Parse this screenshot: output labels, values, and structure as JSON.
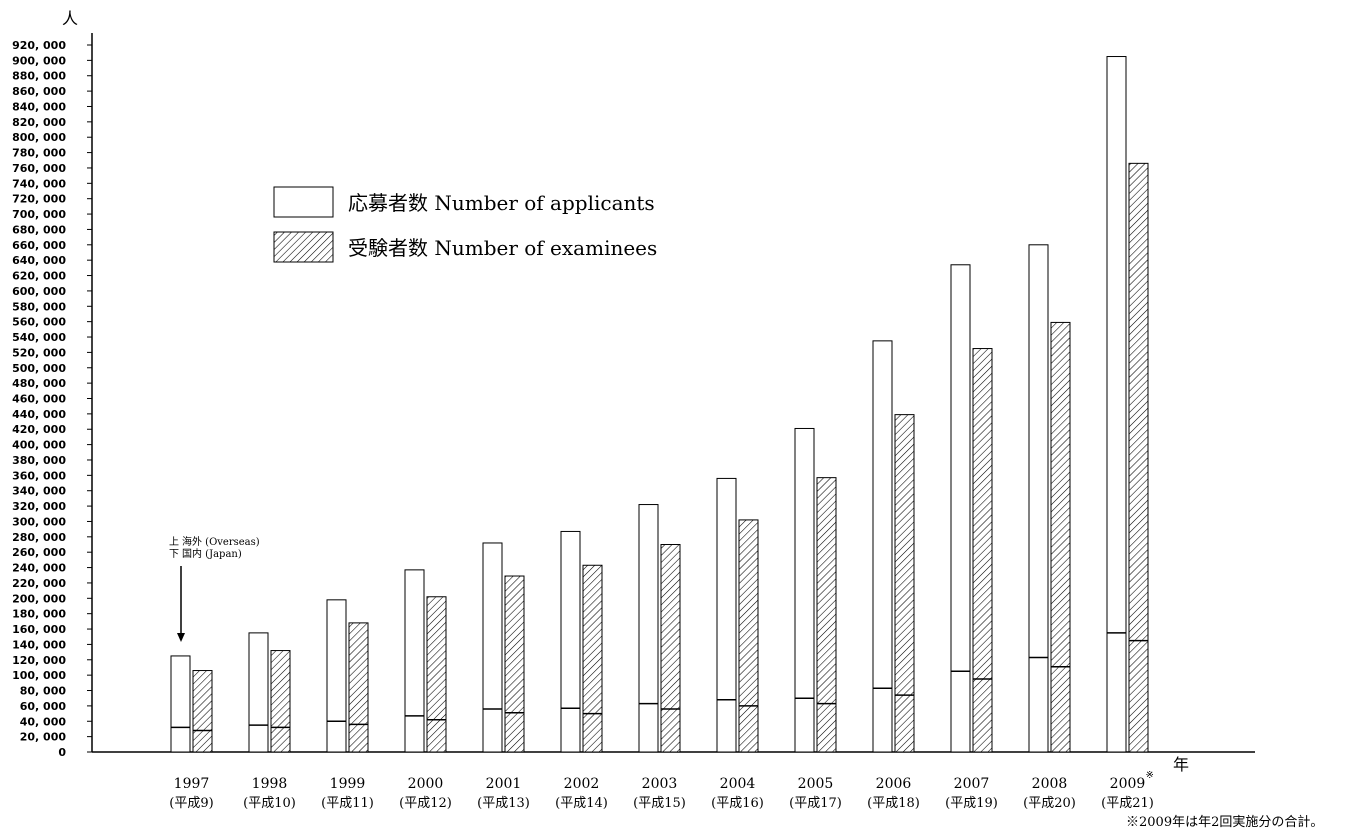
{
  "chart_data": {
    "type": "bar",
    "title": "",
    "y_unit": "人",
    "x_unit": "年",
    "ylim": [
      0,
      920000
    ],
    "y_step": 20000,
    "y_tick_labels": [
      "0",
      "20, 000",
      "40, 000",
      "60, 000",
      "80, 000",
      "100, 000",
      "120, 000",
      "140, 000",
      "160, 000",
      "180, 000",
      "200, 000",
      "220, 000",
      "240, 000",
      "260, 000",
      "280, 000",
      "300, 000",
      "320, 000",
      "340, 000",
      "360, 000",
      "380, 000",
      "400, 000",
      "420, 000",
      "440, 000",
      "460, 000",
      "480, 000",
      "500, 000",
      "520, 000",
      "540, 000",
      "560, 000",
      "580, 000",
      "600, 000",
      "620, 000",
      "640, 000",
      "660, 000",
      "680, 000",
      "700, 000",
      "720, 000",
      "740, 000",
      "760, 000",
      "780, 000",
      "800, 000",
      "820, 000",
      "840, 000",
      "860, 000",
      "880, 000",
      "900, 000",
      "920, 000"
    ],
    "categories": [
      "1997",
      "1998",
      "1999",
      "2000",
      "2001",
      "2002",
      "2003",
      "2004",
      "2005",
      "2006",
      "2007",
      "2008",
      "2009"
    ],
    "era_labels": [
      "(平成9)",
      "(平成10)",
      "(平成11)",
      "(平成12)",
      "(平成13)",
      "(平成14)",
      "(平成15)",
      "(平成16)",
      "(平成17)",
      "(平成18)",
      "(平成19)",
      "(平成20)",
      "(平成21)"
    ],
    "year_marks": [
      "",
      "",
      "",
      "",
      "",
      "",
      "",
      "",
      "",
      "",
      "",
      "",
      "※"
    ],
    "legend_position": "upper-left",
    "series": [
      {
        "name": "応募者数 Number of applicants",
        "pattern": "plain",
        "values": [
          125000,
          155000,
          198000,
          237000,
          272000,
          287000,
          322000,
          356000,
          421000,
          535000,
          634000,
          660000,
          905000
        ],
        "domestic": [
          32000,
          35000,
          40000,
          47000,
          56000,
          57000,
          63000,
          68000,
          70000,
          83000,
          105000,
          123000,
          155000
        ]
      },
      {
        "name": "受験者数 Number of examinees",
        "pattern": "hatched",
        "values": [
          106000,
          132000,
          168000,
          202000,
          229000,
          243000,
          270000,
          302000,
          357000,
          439000,
          525000,
          559000,
          766000
        ],
        "domestic": [
          28000,
          32000,
          36000,
          42000,
          51000,
          50000,
          56000,
          60000,
          63000,
          74000,
          95000,
          111000,
          145000
        ]
      }
    ],
    "annotation": {
      "upper_marker": "上",
      "upper_text": "海外 (Overseas)",
      "lower_marker": "下",
      "lower_text": "国内 (Japan)"
    },
    "footnote": "※2009年は年2回実施分の合計。"
  }
}
